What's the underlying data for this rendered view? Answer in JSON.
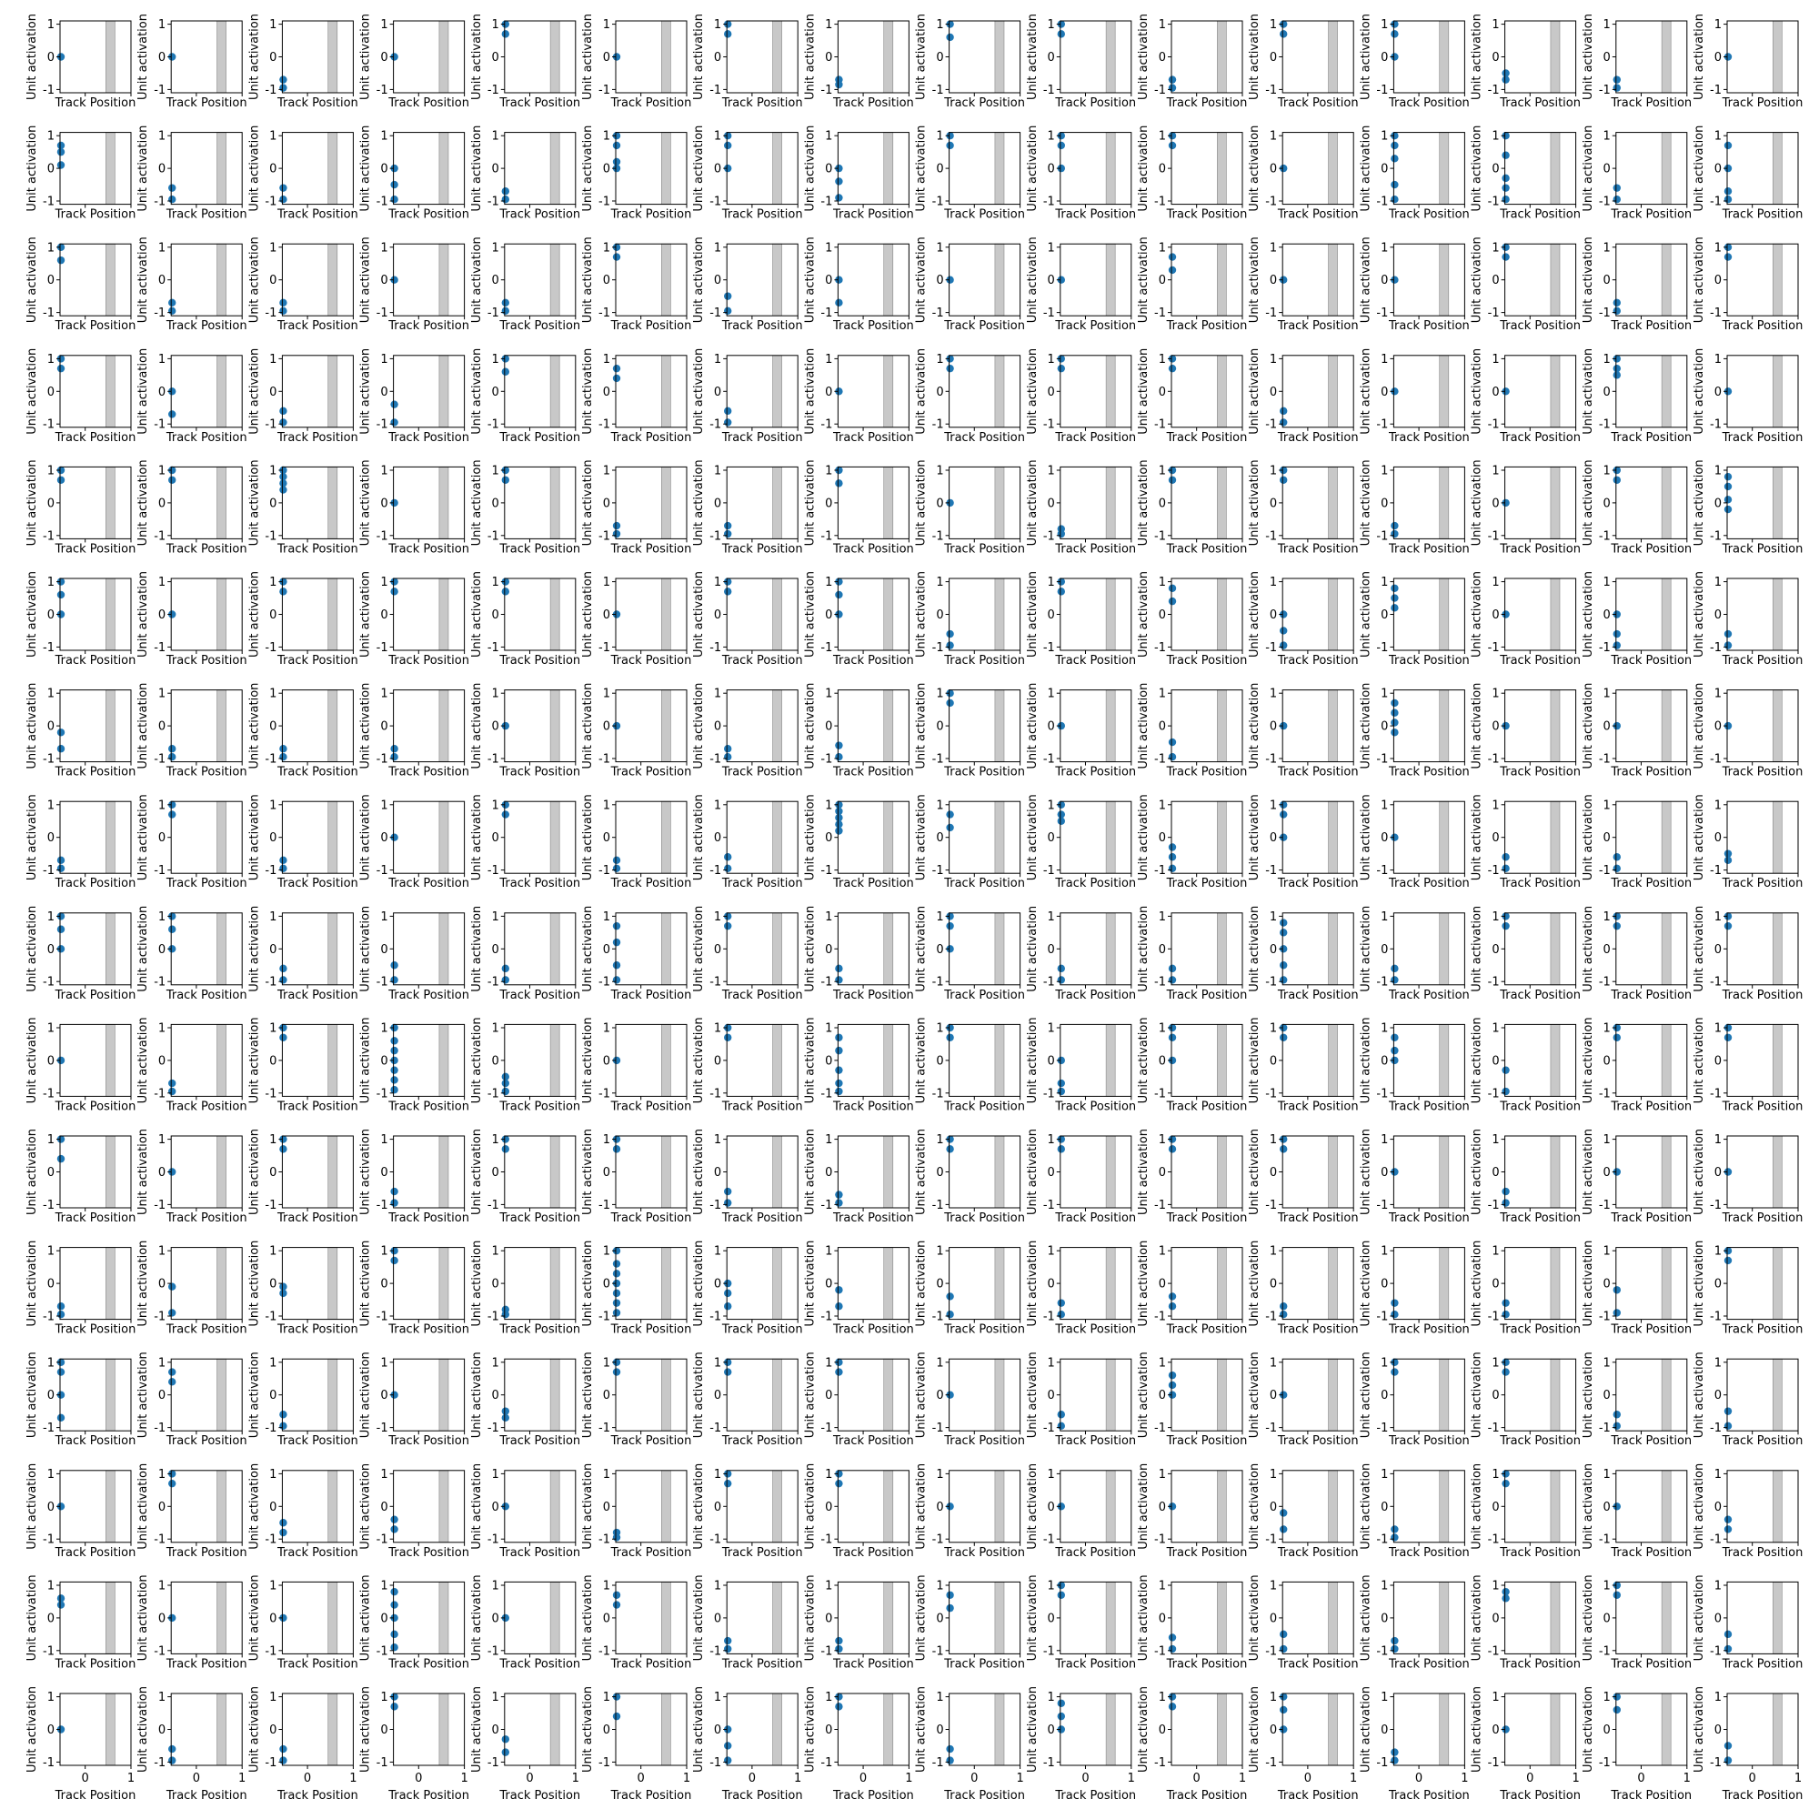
{
  "axis_labels": {
    "xlabel": "Track Position",
    "ylabel": "Unit activation"
  },
  "colors": {
    "points": "#1f77b4",
    "band": "#c8c8c8",
    "band_edge": "#888888",
    "axes": "#000000"
  },
  "chart_data": {
    "type": "scatter",
    "layout": {
      "rows": 16,
      "cols": 16
    },
    "xlim": [
      -0.55,
      1.0
    ],
    "ylim": [
      -1.1,
      1.1
    ],
    "xticks": [
      0,
      1
    ],
    "yticks": [
      -1,
      0,
      1
    ],
    "xtick_labels": [
      "0",
      "1"
    ],
    "ytick_labels": [
      "-1",
      "0",
      "1"
    ],
    "shaded_band": [
      0.45,
      0.65
    ],
    "point_x": -0.53,
    "xlabel": "Track Position",
    "ylabel": "Unit activation",
    "panels": [
      [
        [
          0
        ],
        [
          0
        ],
        [
          -0.7,
          -0.95
        ],
        [
          0
        ],
        [
          1,
          0.7
        ],
        [
          0
        ],
        [
          1,
          0.7
        ],
        [
          -0.7,
          -0.85
        ],
        [
          1,
          0.6
        ],
        [
          1,
          0.7
        ],
        [
          -0.7,
          -0.95
        ],
        [
          1,
          0.7
        ],
        [
          1,
          0.7,
          0
        ],
        [
          -0.5,
          -0.7
        ],
        [
          -0.7,
          -0.95
        ],
        [
          0
        ]
      ],
      [
        [
          0.7,
          0.5,
          0.1
        ],
        [
          -0.6,
          -0.95
        ],
        [
          -0.6,
          -0.95
        ],
        [
          0,
          -0.5,
          -0.95
        ],
        [
          -0.7,
          -0.95
        ],
        [
          1,
          0.7,
          0.2,
          0
        ],
        [
          1,
          0.7,
          0
        ],
        [
          0,
          -0.4,
          -0.9
        ],
        [
          1,
          0.7
        ],
        [
          1,
          0.7,
          0
        ],
        [
          1,
          0.7
        ],
        [
          0
        ],
        [
          1,
          0.7,
          0.3,
          -0.5,
          -0.95
        ],
        [
          1,
          0.4,
          -0.3,
          -0.6,
          -0.95
        ],
        [
          -0.6,
          -0.95
        ],
        [
          0.7,
          0,
          -0.7,
          -0.95
        ]
      ],
      [
        [
          1,
          0.6
        ],
        [
          -0.7,
          -0.95
        ],
        [
          -0.7,
          -0.95
        ],
        [
          0
        ],
        [
          -0.7,
          -0.95
        ],
        [
          1,
          0.7
        ],
        [
          -0.5,
          -0.95
        ],
        [
          0,
          -0.7
        ],
        [
          0
        ],
        [
          0
        ],
        [
          0.7,
          0.3
        ],
        [
          0
        ],
        [
          0
        ],
        [
          1,
          0.7
        ],
        [
          -0.7,
          -0.95
        ],
        [
          1,
          0.7
        ]
      ],
      [
        [
          1,
          0.7
        ],
        [
          0,
          -0.7
        ],
        [
          -0.6,
          -0.95
        ],
        [
          -0.4,
          -0.95
        ],
        [
          1,
          0.6
        ],
        [
          0.7,
          0.4
        ],
        [
          -0.6,
          -0.95
        ],
        [
          0
        ],
        [
          1,
          0.7
        ],
        [
          1,
          0.7
        ],
        [
          1,
          0.7
        ],
        [
          -0.6,
          -0.95
        ],
        [
          0
        ],
        [
          0
        ],
        [
          1,
          0.7,
          0.5
        ],
        [
          0
        ]
      ],
      [
        [
          1,
          0.7
        ],
        [
          1,
          0.7
        ],
        [
          1,
          0.8,
          0.6,
          0.4
        ],
        [
          0
        ],
        [
          1,
          0.7
        ],
        [
          -0.7,
          -0.95
        ],
        [
          -0.7,
          -0.95
        ],
        [
          1,
          0.6
        ],
        [
          0
        ],
        [
          -0.8,
          -0.95
        ],
        [
          1,
          0.7
        ],
        [
          1,
          0.7
        ],
        [
          -0.7,
          -0.95
        ],
        [
          0
        ],
        [
          1,
          0.7
        ],
        [
          0.8,
          0.5,
          0.1,
          -0.2
        ]
      ],
      [
        [
          1,
          0.6,
          0
        ],
        [
          0
        ],
        [
          1,
          0.7
        ],
        [
          1,
          0.7
        ],
        [
          1,
          0.7
        ],
        [
          0
        ],
        [
          1,
          0.7
        ],
        [
          1,
          0.6,
          0
        ],
        [
          -0.6,
          -0.95
        ],
        [
          1,
          0.7
        ],
        [
          0.8,
          0.4
        ],
        [
          0,
          -0.5,
          -0.95
        ],
        [
          0.8,
          0.5,
          0.2
        ],
        [
          0
        ],
        [
          0,
          -0.6,
          -0.95
        ],
        [
          -0.6,
          -0.95
        ]
      ],
      [
        [
          -0.2,
          -0.7
        ],
        [
          -0.7,
          -0.95
        ],
        [
          -0.7,
          -0.95
        ],
        [
          -0.7,
          -0.95
        ],
        [
          0
        ],
        [
          0
        ],
        [
          -0.7,
          -0.95
        ],
        [
          -0.6,
          -0.95
        ],
        [
          1,
          0.7
        ],
        [
          0
        ],
        [
          -0.5,
          -0.95
        ],
        [
          0
        ],
        [
          0.7,
          0.4,
          0.1,
          -0.2
        ],
        [
          0
        ],
        [
          0
        ],
        [
          0
        ]
      ],
      [
        [
          -0.7,
          -0.95
        ],
        [
          1,
          0.7
        ],
        [
          -0.7,
          -0.95
        ],
        [
          0
        ],
        [
          1,
          0.7
        ],
        [
          -0.7,
          -0.95
        ],
        [
          -0.6,
          -0.95
        ],
        [
          1,
          0.8,
          0.6,
          0.4,
          0.2
        ],
        [
          0.7,
          0.3
        ],
        [
          1,
          0.7,
          0.5
        ],
        [
          -0.3,
          -0.6,
          -0.95
        ],
        [
          1,
          0.7,
          0
        ],
        [
          0
        ],
        [
          -0.6,
          -0.95
        ],
        [
          -0.6,
          -0.95
        ],
        [
          -0.5,
          -0.7
        ]
      ],
      [
        [
          1,
          0.6,
          0
        ],
        [
          1,
          0.6,
          0
        ],
        [
          -0.6,
          -0.95
        ],
        [
          -0.5,
          -0.95
        ],
        [
          -0.6,
          -0.95
        ],
        [
          0.7,
          0.2,
          -0.5,
          -0.95
        ],
        [
          1,
          0.7
        ],
        [
          -0.6,
          -0.95
        ],
        [
          1,
          0.7,
          0
        ],
        [
          -0.6,
          -0.95
        ],
        [
          -0.6,
          -0.95
        ],
        [
          0.8,
          0.5,
          0,
          -0.5,
          -0.95
        ],
        [
          -0.6,
          -0.95
        ],
        [
          1,
          0.7
        ],
        [
          1,
          0.7
        ],
        [
          1,
          0.7
        ]
      ],
      [
        [
          0
        ],
        [
          -0.7,
          -0.95
        ],
        [
          1,
          0.7
        ],
        [
          1,
          0.6,
          0.3,
          0,
          -0.3,
          -0.6,
          -0.9
        ],
        [
          -0.5,
          -0.7,
          -0.95
        ],
        [
          0
        ],
        [
          1,
          0.7
        ],
        [
          0.7,
          0.3,
          -0.3,
          -0.7,
          -0.95
        ],
        [
          1,
          0.7
        ],
        [
          0,
          -0.7,
          -0.95
        ],
        [
          1,
          0.7,
          0
        ],
        [
          1,
          0.7
        ],
        [
          0.7,
          0.3,
          0
        ],
        [
          -0.3,
          -0.95
        ],
        [
          1,
          0.7
        ],
        [
          1,
          0.7
        ]
      ],
      [
        [
          1,
          0.4
        ],
        [
          0
        ],
        [
          1,
          0.7
        ],
        [
          -0.6,
          -0.95
        ],
        [
          1,
          0.7
        ],
        [
          1,
          0.7
        ],
        [
          -0.6,
          -0.95
        ],
        [
          -0.7,
          -0.95
        ],
        [
          1,
          0.7
        ],
        [
          1,
          0.7
        ],
        [
          1,
          0.7
        ],
        [
          1,
          0.7
        ],
        [
          0
        ],
        [
          -0.6,
          -0.95
        ],
        [
          0
        ],
        [
          0
        ]
      ],
      [
        [
          -0.7,
          -0.95
        ],
        [
          -0.1,
          -0.9
        ],
        [
          -0.1,
          -0.3
        ],
        [
          1,
          0.7
        ],
        [
          -0.8,
          -0.95
        ],
        [
          1,
          0.6,
          0.3,
          0,
          -0.3,
          -0.6,
          -0.9
        ],
        [
          0,
          -0.3,
          -0.7
        ],
        [
          -0.2,
          -0.7
        ],
        [
          -0.4,
          -0.95
        ],
        [
          -0.6,
          -0.95
        ],
        [
          -0.4,
          -0.7
        ],
        [
          -0.7,
          -0.95
        ],
        [
          -0.6,
          -0.95
        ],
        [
          -0.6,
          -0.95
        ],
        [
          -0.2,
          -0.9
        ],
        [
          1,
          0.7
        ]
      ],
      [
        [
          1,
          0.7,
          0,
          -0.7
        ],
        [
          0.7,
          0.4
        ],
        [
          -0.6,
          -0.95
        ],
        [
          0
        ],
        [
          -0.5,
          -0.7
        ],
        [
          1,
          0.7
        ],
        [
          1,
          0.7
        ],
        [
          1,
          0.7
        ],
        [
          0
        ],
        [
          -0.6,
          -0.95
        ],
        [
          0.6,
          0.3,
          0
        ],
        [
          0
        ],
        [
          1,
          0.7
        ],
        [
          1,
          0.7
        ],
        [
          -0.6,
          -0.95
        ],
        [
          -0.5,
          -0.95
        ]
      ],
      [
        [
          0
        ],
        [
          1,
          0.7
        ],
        [
          -0.5,
          -0.8
        ],
        [
          -0.4,
          -0.7
        ],
        [
          0
        ],
        [
          -0.8,
          -0.95
        ],
        [
          1,
          0.7
        ],
        [
          1,
          0.7
        ],
        [
          0
        ],
        [
          0
        ],
        [
          0
        ],
        [
          -0.2,
          -0.7
        ],
        [
          -0.7,
          -0.95
        ],
        [
          1,
          0.7
        ],
        [
          0
        ],
        [
          -0.4,
          -0.7
        ]
      ],
      [
        [
          0.6,
          0.4
        ],
        [
          0
        ],
        [
          0
        ],
        [
          0.8,
          0.4,
          0,
          -0.5,
          -0.9
        ],
        [
          0
        ],
        [
          0.7,
          0.4
        ],
        [
          -0.7,
          -0.95
        ],
        [
          -0.7,
          -0.95
        ],
        [
          0.7,
          0.3
        ],
        [
          1,
          0.7
        ],
        [
          -0.6,
          -0.95
        ],
        [
          -0.5,
          -0.95
        ],
        [
          -0.7,
          -0.95
        ],
        [
          0.8,
          0.6
        ],
        [
          1,
          0.7
        ],
        [
          -0.5,
          -0.95
        ]
      ],
      [
        [
          0
        ],
        [
          -0.6,
          -0.95
        ],
        [
          -0.6,
          -0.95
        ],
        [
          1,
          0.7
        ],
        [
          -0.3,
          -0.7
        ],
        [
          1,
          0.4
        ],
        [
          0,
          -0.5,
          -0.95
        ],
        [
          1,
          0.7
        ],
        [
          -0.6,
          -0.95
        ],
        [
          0.8,
          0.4,
          0
        ],
        [
          1,
          0.7
        ],
        [
          1,
          0.6,
          0
        ],
        [
          -0.7,
          -0.95
        ],
        [
          0
        ],
        [
          1,
          0.6
        ],
        [
          -0.5,
          -0.95
        ]
      ]
    ]
  }
}
